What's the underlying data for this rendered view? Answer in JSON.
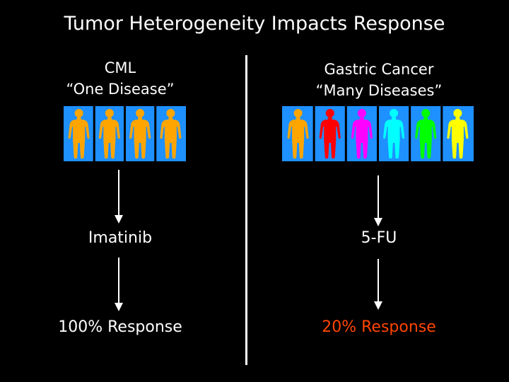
{
  "title": "Tumor Heterogeneity Impacts Response",
  "left": {
    "heading_line1": "CML",
    "heading_line2": "“One Disease”",
    "figures": [
      {
        "color": "#FFA500",
        "icon": "human-figure"
      },
      {
        "color": "#FFA500",
        "icon": "human-figure"
      },
      {
        "color": "#FFA500",
        "icon": "human-figure"
      },
      {
        "color": "#FFA500",
        "icon": "human-figure"
      }
    ],
    "panel_color": "#1E90FF",
    "drug": "Imatinib",
    "response": "100% Response",
    "response_color": "#FFFFFF"
  },
  "right": {
    "heading_line1": "Gastric Cancer",
    "heading_line2": "“Many Diseases”",
    "figures": [
      {
        "color": "#FFA500",
        "icon": "human-figure"
      },
      {
        "color": "#FF0000",
        "icon": "human-figure"
      },
      {
        "color": "#FF00FF",
        "icon": "human-figure"
      },
      {
        "color": "#00FFFF",
        "icon": "human-figure"
      },
      {
        "color": "#00FF00",
        "icon": "human-figure"
      },
      {
        "color": "#FFFF00",
        "icon": "human-figure"
      }
    ],
    "panel_color": "#1E90FF",
    "drug": "5-FU",
    "response": "20% Response",
    "response_color": "#FF4500"
  }
}
